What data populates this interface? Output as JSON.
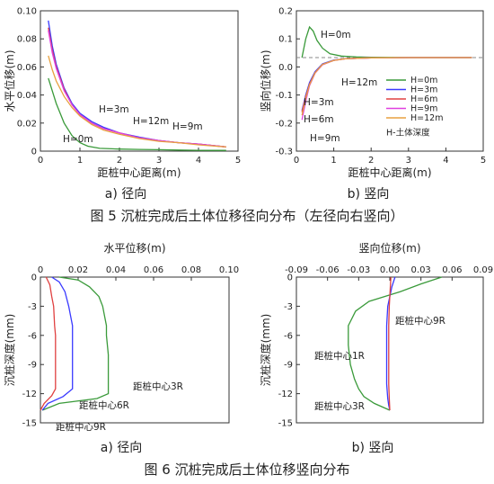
{
  "figures": [
    {
      "caption": "图 5   沉桩完成后土体位移径向分布（左径向右竖向）"
    },
    {
      "caption": "图 6   沉桩完成后土体位移竖向分布"
    }
  ],
  "colors": {
    "axis": "#333333",
    "H=0m": "#3a9a3a",
    "H=3m": "#3a3aff",
    "H=6m": "#e04040",
    "H=9m": "#e040e0",
    "H=12m": "#e8a040",
    "H-土体深度": "#888888",
    "距桩中心1R": "#3a3aff",
    "距桩中心3R": "#3a9a3a",
    "距桩中心6R": "#3a3aff",
    "距桩中心9R": "#e04040"
  },
  "chart_data": [
    {
      "id": "fig5a",
      "type": "line",
      "sublabel": "a) 径向",
      "xlabel": "距桩中心距离(m)",
      "ylabel": "水平位移(m)",
      "xlim": [
        0,
        5
      ],
      "ylim": [
        0,
        0.1
      ],
      "xticks": [
        "0",
        "1",
        "2",
        "3",
        "4",
        "5"
      ],
      "yticks": [
        "0",
        "0.02",
        "0.04",
        "0.06",
        "0.08",
        "0.10"
      ],
      "series": [
        {
          "name": "H=0m",
          "x": [
            0.2,
            0.4,
            0.6,
            0.8,
            1,
            1.2,
            1.5,
            2,
            2.5,
            3,
            3.5,
            4,
            4.7
          ],
          "y": [
            0.052,
            0.034,
            0.02,
            0.011,
            0.006,
            0.0035,
            0.002,
            0.0015,
            0.0012,
            0.001,
            0.0008,
            0.0006,
            0.0005
          ]
        },
        {
          "name": "H=3m",
          "x": [
            0.2,
            0.3,
            0.4,
            0.6,
            0.8,
            1,
            1.3,
            1.6,
            2,
            2.5,
            3,
            3.5,
            4,
            4.7
          ],
          "y": [
            0.093,
            0.075,
            0.062,
            0.045,
            0.034,
            0.027,
            0.021,
            0.017,
            0.013,
            0.01,
            0.0075,
            0.006,
            0.005,
            0.003
          ]
        },
        {
          "name": "H=6m",
          "x": [
            0.2,
            0.3,
            0.4,
            0.6,
            0.8,
            1,
            1.3,
            1.6,
            2,
            2.5,
            3,
            3.5,
            4,
            4.7
          ],
          "y": [
            0.088,
            0.072,
            0.06,
            0.044,
            0.033,
            0.026,
            0.02,
            0.016,
            0.013,
            0.0095,
            0.0075,
            0.006,
            0.005,
            0.003
          ]
        },
        {
          "name": "H=9m",
          "x": [
            0.2,
            0.3,
            0.4,
            0.6,
            0.8,
            1,
            1.3,
            1.6,
            2,
            2.5,
            3,
            3.5,
            4,
            4.7
          ],
          "y": [
            0.086,
            0.07,
            0.059,
            0.043,
            0.033,
            0.026,
            0.02,
            0.016,
            0.013,
            0.0095,
            0.0075,
            0.006,
            0.005,
            0.003
          ]
        },
        {
          "name": "H=12m",
          "x": [
            0.2,
            0.3,
            0.4,
            0.6,
            0.8,
            1,
            1.3,
            1.6,
            2,
            2.5,
            3,
            3.5,
            4,
            4.7
          ],
          "y": [
            0.068,
            0.058,
            0.05,
            0.039,
            0.031,
            0.025,
            0.019,
            0.015,
            0.012,
            0.009,
            0.007,
            0.006,
            0.0045,
            0.003
          ]
        }
      ],
      "labels": [
        "H=3m",
        "H=12m",
        "H=9m",
        "H=0m"
      ]
    },
    {
      "id": "fig5b",
      "type": "line",
      "sublabel": "b) 竖向",
      "xlabel": "距桩中心距离(m)",
      "ylabel": "竖向位移(m)",
      "xlim": [
        0,
        5
      ],
      "ylim": [
        -0.3,
        0.15
      ],
      "xticks": [
        "0",
        "1",
        "2",
        "3",
        "4",
        "5"
      ],
      "yticks": [
        "-0.3",
        "-0.2",
        "-0.1",
        "0.0",
        "0.1",
        "0.2"
      ],
      "dashed_zero_line": true,
      "series": [
        {
          "name": "H=0m",
          "x": [
            0.15,
            0.25,
            0.35,
            0.45,
            0.55,
            0.7,
            0.9,
            1.2,
            1.6,
            2,
            3,
            4,
            4.7
          ],
          "y": [
            0,
            0.06,
            0.098,
            0.085,
            0.055,
            0.03,
            0.012,
            0.005,
            0.002,
            0.001,
            0,
            0,
            0
          ]
        },
        {
          "name": "H=3m",
          "x": [
            0.15,
            0.25,
            0.35,
            0.5,
            0.7,
            1,
            1.3,
            1.7,
            2,
            3,
            4,
            4.7
          ],
          "y": [
            -0.17,
            -0.12,
            -0.08,
            -0.045,
            -0.02,
            -0.008,
            -0.004,
            -0.002,
            -0.001,
            0,
            0,
            0
          ]
        },
        {
          "name": "H=6m",
          "x": [
            0.15,
            0.25,
            0.35,
            0.5,
            0.7,
            1,
            1.3,
            1.7,
            2,
            3,
            4,
            4.7
          ],
          "y": [
            -0.175,
            -0.125,
            -0.085,
            -0.048,
            -0.022,
            -0.009,
            -0.004,
            -0.002,
            -0.001,
            0,
            0,
            0
          ]
        },
        {
          "name": "H=9m",
          "x": [
            0.15,
            0.25,
            0.35,
            0.5,
            0.7,
            1,
            1.3,
            1.7,
            2,
            3,
            4,
            4.7
          ],
          "y": [
            -0.2,
            -0.14,
            -0.09,
            -0.05,
            -0.023,
            -0.009,
            -0.004,
            -0.002,
            -0.001,
            0,
            0,
            0
          ]
        },
        {
          "name": "H=12m",
          "x": [
            0.15,
            0.25,
            0.35,
            0.5,
            0.7,
            1,
            1.3,
            1.7,
            2,
            3,
            4,
            4.7
          ],
          "y": [
            -0.185,
            -0.13,
            -0.087,
            -0.049,
            -0.022,
            -0.009,
            -0.004,
            -0.002,
            -0.001,
            0,
            0,
            0
          ]
        }
      ],
      "legend": {
        "entries": [
          "H=0m",
          "H=3m",
          "H=6m",
          "H=9m",
          "H=12m"
        ],
        "note": "H-土体深度"
      },
      "labels": [
        "H=0m",
        "H=12m",
        "H=3m",
        "H=6m",
        "H=9m"
      ]
    },
    {
      "id": "fig6a",
      "type": "line",
      "sublabel": "a) 径向",
      "xlabel": "水平位移(m)",
      "ylabel": "沉桩深度(mm)",
      "xlim": [
        0,
        0.1
      ],
      "ylim": [
        -15,
        0
      ],
      "xticks": [
        "0",
        "0.02",
        "0.04",
        "0.06",
        "0.08",
        "0.10"
      ],
      "yticks": [
        "0",
        "-3",
        "-6",
        "-9",
        "-12",
        "-15"
      ],
      "series": [
        {
          "name": "距桩中心3R",
          "x": [
            0.01,
            0.02,
            0.026,
            0.031,
            0.033,
            0.034,
            0.035,
            0.035,
            0.036,
            0.036,
            0.036,
            0.03,
            0.01,
            0.001
          ],
          "y": [
            0,
            -0.3,
            -1,
            -2,
            -3,
            -4,
            -5,
            -6,
            -8,
            -10,
            -12,
            -12.5,
            -13,
            -13.7
          ]
        },
        {
          "name": "距桩中心6R",
          "x": [
            0.006,
            0.01,
            0.013,
            0.015,
            0.016,
            0.017,
            0.017,
            0.017,
            0.017,
            0.017,
            0.012,
            0.004,
            0.001
          ],
          "y": [
            0,
            -0.5,
            -1.5,
            -3,
            -4,
            -5,
            -6,
            -8,
            -10,
            -11.5,
            -12.3,
            -13,
            -13.7
          ]
        },
        {
          "name": "距桩中心9R",
          "x": [
            0.003,
            0.005,
            0.006,
            0.007,
            0.0075,
            0.008,
            0.008,
            0.008,
            0.008,
            0.006,
            0.002,
            0
          ],
          "y": [
            0,
            -0.8,
            -2,
            -3,
            -5,
            -6,
            -8,
            -10,
            -11.5,
            -12.2,
            -13,
            -13.7
          ]
        }
      ],
      "labels": [
        "距桩中心3R",
        "距桩中心6R",
        "距桩中心9R"
      ]
    },
    {
      "id": "fig6b",
      "type": "line",
      "sublabel": "b) 竖向",
      "xlabel": "竖向位移(m)",
      "ylabel": "沉桩深度(mm)",
      "xlim": [
        -0.09,
        0.09
      ],
      "ylim": [
        -15,
        0
      ],
      "xticks": [
        "-0.09",
        "-0.06",
        "-0.03",
        "0.00",
        "0.03",
        "0.06",
        "0.09"
      ],
      "yticks": [
        "0",
        "-3",
        "-6",
        "-9",
        "-12",
        "-15"
      ],
      "series": [
        {
          "name": "距桩中心3R",
          "x": [
            0.05,
            0.03,
            0.01,
            -0.005,
            -0.02,
            -0.033,
            -0.04,
            -0.04,
            -0.038,
            -0.034,
            -0.03,
            -0.025,
            -0.015,
            0
          ],
          "y": [
            0,
            -0.7,
            -1.5,
            -2,
            -2.5,
            -3.5,
            -5,
            -7,
            -9,
            -10.5,
            -11.5,
            -12.3,
            -13,
            -13.7
          ]
        },
        {
          "name": "距桩中心1R",
          "x": [
            0.005,
            0.002,
            0,
            -0.002,
            -0.003,
            -0.003,
            -0.003,
            -0.003,
            -0.002,
            -0.001,
            0
          ],
          "y": [
            0,
            -1,
            -2,
            -3,
            -5,
            -7,
            -9,
            -11,
            -12.5,
            -13.2,
            -13.7
          ]
        },
        {
          "name": "距桩中心9R",
          "x": [
            0.001,
            0.0005,
            0,
            -0.0005,
            -0.001,
            -0.001,
            -0.001,
            -0.001,
            -0.0005,
            0
          ],
          "y": [
            0,
            -1,
            -2,
            -3,
            -5,
            -7,
            -9,
            -11,
            -12.5,
            -13.7
          ]
        }
      ],
      "labels": [
        "距桩中心9R",
        "距桩中心1R",
        "距桩中心3R"
      ]
    }
  ]
}
